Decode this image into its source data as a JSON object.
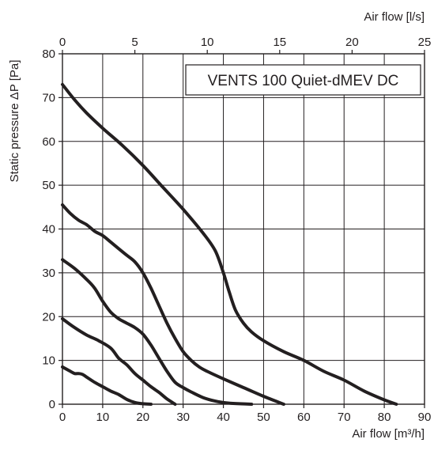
{
  "chart_data": {
    "type": "line",
    "title": "VENTS 100 Quiet-dMEV DC",
    "xlabel": "Air flow [m³/h]",
    "x2label": "Air flow [l/s]",
    "ylabel": "Static pressure ΔP [Pa]",
    "xlim": [
      0,
      90
    ],
    "x2lim": [
      0,
      25
    ],
    "ylim": [
      0,
      80
    ],
    "xticks": [
      0,
      10,
      20,
      30,
      40,
      50,
      60,
      70,
      80,
      90
    ],
    "x2ticks": [
      0,
      5,
      10,
      15,
      20,
      25
    ],
    "yticks": [
      0,
      10,
      20,
      30,
      40,
      50,
      60,
      70,
      80
    ],
    "grid": true,
    "line_color": "#231f20",
    "series": [
      {
        "x": [
          0,
          3,
          6,
          10,
          15,
          20,
          25,
          30,
          35,
          38,
          40,
          41.5,
          43,
          45,
          47,
          50,
          55,
          60,
          65,
          70,
          75,
          80,
          83
        ],
        "values": [
          73,
          69.5,
          66.5,
          63,
          59,
          54.5,
          49.5,
          44.5,
          39,
          35,
          30,
          25.5,
          21.5,
          18.5,
          16.5,
          14.5,
          12,
          10,
          7.5,
          5.5,
          3,
          1,
          0
        ]
      },
      {
        "x": [
          0,
          2,
          4,
          6,
          8,
          10,
          12,
          14,
          16,
          18,
          20,
          22,
          24,
          26,
          28,
          30,
          32,
          34,
          36,
          40,
          45,
          50,
          55
        ],
        "values": [
          45.5,
          43.5,
          42,
          41,
          39.5,
          38.5,
          37,
          35.5,
          34,
          32.5,
          30,
          26.5,
          22.5,
          18.5,
          15,
          12,
          10,
          8.5,
          7.5,
          5.8,
          3.8,
          1.8,
          0
        ]
      },
      {
        "x": [
          0,
          3,
          6,
          8,
          10,
          12,
          14,
          16,
          18,
          20,
          22,
          24,
          26,
          28,
          30,
          32,
          35,
          38,
          40,
          42,
          44,
          47
        ],
        "values": [
          33,
          31,
          28.5,
          26.5,
          23.5,
          21,
          19.5,
          18.5,
          17.5,
          16,
          13.5,
          10.5,
          7.5,
          5,
          3.8,
          2.8,
          1.5,
          0.7,
          0.4,
          0.2,
          0.1,
          0
        ]
      },
      {
        "x": [
          0,
          3,
          6,
          9,
          12,
          14,
          16,
          18,
          20,
          22,
          24,
          26,
          28
        ],
        "values": [
          19.5,
          17.5,
          15.8,
          14.5,
          12.8,
          10.5,
          9,
          7,
          5.5,
          4,
          2.7,
          1.2,
          0
        ]
      },
      {
        "x": [
          0,
          2,
          3,
          4,
          5,
          6,
          8,
          10,
          12,
          14,
          16,
          18,
          20,
          22
        ],
        "values": [
          8.5,
          7.5,
          7,
          7,
          6.8,
          6.2,
          5,
          4,
          3,
          2.2,
          1.1,
          0.4,
          0.1,
          0
        ]
      }
    ]
  }
}
